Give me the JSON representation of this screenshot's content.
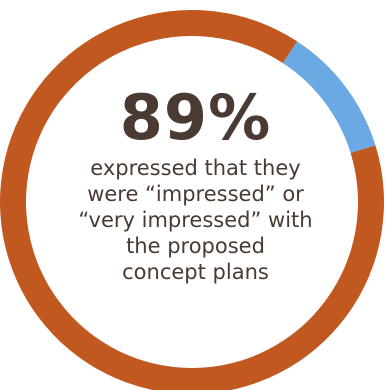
{
  "chart_data": {
    "type": "pie",
    "values": [
      89,
      11
    ],
    "colors": [
      "#c0581f",
      "#6aa9e3"
    ]
  },
  "headline": {
    "value": "89%",
    "caption_lines": [
      "expressed that they",
      "were “impressed” or",
      "“very impressed” with",
      "the proposed",
      "concept plans"
    ]
  }
}
